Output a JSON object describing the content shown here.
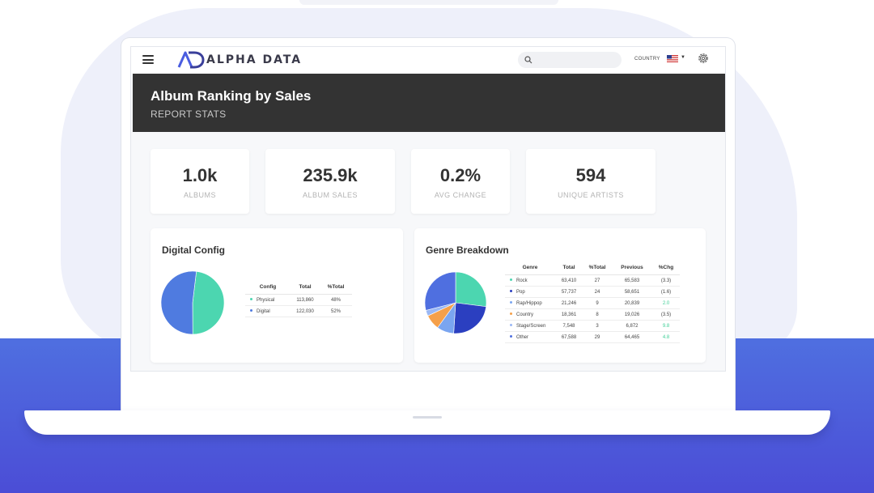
{
  "brand": {
    "name": "ALPHA DATA",
    "accent": "#4a5de0"
  },
  "header": {
    "country_label": "COUNTRY",
    "country_flag": "us-flag-icon"
  },
  "hero": {
    "title": "Album Ranking by Sales",
    "subtitle": "REPORT STATS"
  },
  "stats": [
    {
      "value": "1.0k",
      "label": "ALBUMS"
    },
    {
      "value": "235.9k",
      "label": "ALBUM SALES"
    },
    {
      "value": "0.2%",
      "label": "AVG CHANGE"
    },
    {
      "value": "594",
      "label": "UNIQUE ARTISTS"
    }
  ],
  "digital_config": {
    "title": "Digital Config",
    "columns": [
      "Config",
      "Total",
      "%Total"
    ],
    "rows": [
      {
        "label": "Physical",
        "total": "113,860",
        "pct": "48%",
        "color": "#4cd6b0"
      },
      {
        "label": "Digital",
        "total": "122,030",
        "pct": "52%",
        "color": "#4f7be0"
      }
    ]
  },
  "genre_breakdown": {
    "title": "Genre Breakdown",
    "columns": [
      "Genre",
      "Total",
      "%Total",
      "Previous",
      "%Chg"
    ],
    "rows": [
      {
        "label": "Rock",
        "total": "63,410",
        "pct": "27",
        "previous": "65,583",
        "chg": "(3.3)",
        "color": "#4cd6b0",
        "chg_positive": false
      },
      {
        "label": "Pop",
        "total": "57,737",
        "pct": "24",
        "previous": "58,651",
        "chg": "(1.6)",
        "color": "#2b3fc0",
        "chg_positive": false
      },
      {
        "label": "Rap/Hippop",
        "total": "21,246",
        "pct": "9",
        "previous": "20,839",
        "chg": "2.0",
        "color": "#7aa5f0",
        "chg_positive": true
      },
      {
        "label": "Country",
        "total": "18,361",
        "pct": "8",
        "previous": "19,026",
        "chg": "(3.5)",
        "color": "#f5a04a",
        "chg_positive": false
      },
      {
        "label": "Stage/Screen",
        "total": "7,548",
        "pct": "3",
        "previous": "6,872",
        "chg": "9.8",
        "color": "#9ab8f5",
        "chg_positive": true
      },
      {
        "label": "Other",
        "total": "67,588",
        "pct": "29",
        "previous": "64,465",
        "chg": "4.8",
        "color": "#4f6fe0",
        "chg_positive": true
      }
    ]
  },
  "chart_data": [
    {
      "type": "pie",
      "categories": [
        "Physical",
        "Digital"
      ],
      "values": [
        48,
        52
      ],
      "colors": [
        "#4cd6b0",
        "#4f7be0"
      ]
    },
    {
      "type": "pie",
      "categories": [
        "Rock",
        "Pop",
        "Rap/Hippop",
        "Country",
        "Stage/Screen",
        "Other"
      ],
      "values": [
        27,
        24,
        9,
        8,
        3,
        29
      ],
      "colors": [
        "#4cd6b0",
        "#2b3fc0",
        "#7aa5f0",
        "#f5a04a",
        "#9ab8f5",
        "#4f6fe0"
      ]
    }
  ]
}
